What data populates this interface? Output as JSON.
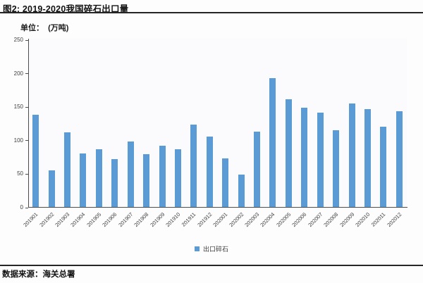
{
  "header": {
    "title": "图2:  2019-2020我国碎石出口量"
  },
  "chart": {
    "unit_label": "单位：  (万吨)"
  },
  "chart_data": {
    "type": "bar",
    "title": "图2: 2019-2020我国碎石出口量",
    "categories": [
      "201901",
      "201902",
      "201903",
      "201904",
      "201905",
      "201906",
      "201907",
      "201908",
      "201909",
      "201910",
      "201911",
      "201912",
      "202001",
      "202002",
      "202003",
      "202004",
      "202005",
      "202006",
      "202007",
      "202008",
      "202009",
      "202010",
      "202011",
      "202012"
    ],
    "values": [
      138,
      55,
      111,
      80,
      86,
      71,
      98,
      79,
      91,
      86,
      123,
      105,
      73,
      48,
      112,
      192,
      161,
      148,
      141,
      115,
      154,
      146,
      120,
      143
    ],
    "xlabel": "",
    "ylabel": "单位：(万吨)",
    "ylim": [
      0,
      250
    ],
    "yticks": [
      0,
      50,
      100,
      150,
      200,
      250
    ],
    "grid": false,
    "legend": [
      "出口碎石"
    ],
    "legend_position": "bottom",
    "bar_color": "#5B9BD5"
  },
  "footer": {
    "source": "数据来源：海关总署"
  }
}
